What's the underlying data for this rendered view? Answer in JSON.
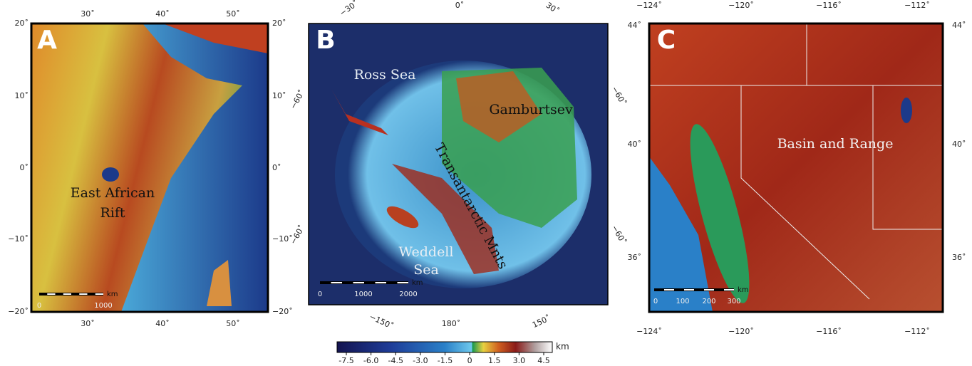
{
  "panels": [
    {
      "label": "A",
      "ticks": {
        "top": [
          "30˚",
          "40˚",
          "50˚"
        ],
        "bottom": [
          "30˚",
          "40˚",
          "50˚"
        ],
        "left": [
          "20˚",
          "10˚",
          "0˚",
          "−10˚",
          "−20˚"
        ],
        "right": [
          "20˚",
          "10˚",
          "0˚",
          "−10˚",
          "−20˚"
        ]
      },
      "annotations": [
        "East African",
        "Rift"
      ],
      "scale_bar": {
        "labels": [
          "0",
          "1000"
        ],
        "unit": "km"
      }
    },
    {
      "label": "B",
      "ticks": {
        "top": [
          "−30˚",
          "0˚",
          "30˚"
        ],
        "bottom": [
          "−150˚",
          "180˚",
          "150˚"
        ],
        "left": [
          "−60˚",
          "−60˚"
        ],
        "right": [
          "−60˚",
          "−60˚"
        ]
      },
      "annotations": [
        "Ross Sea",
        "Gamburtsev",
        "Transantarctic Mnts",
        "Weddell",
        "Sea"
      ],
      "scale_bar": {
        "labels": [
          "0",
          "1000",
          "2000"
        ],
        "unit": "km"
      }
    },
    {
      "label": "C",
      "ticks": {
        "top": [
          "−124˚",
          "−120˚",
          "−116˚",
          "−112˚"
        ],
        "bottom": [
          "−124˚",
          "−120˚",
          "−116˚",
          "−112˚"
        ],
        "left": [
          "44˚",
          "40˚",
          "36˚"
        ],
        "right": [
          "44˚",
          "40˚",
          "36˚"
        ]
      },
      "annotations": [
        "Basin and Range"
      ],
      "scale_bar": {
        "labels": [
          "0",
          "100",
          "200",
          "300"
        ],
        "unit": "km"
      }
    }
  ],
  "colorbar": {
    "ticks": [
      "-7.5",
      "-6.0",
      "-4.5",
      "-3.0",
      "-1.5",
      "0",
      "1.5",
      "3.0",
      "4.5"
    ],
    "unit": "km"
  }
}
